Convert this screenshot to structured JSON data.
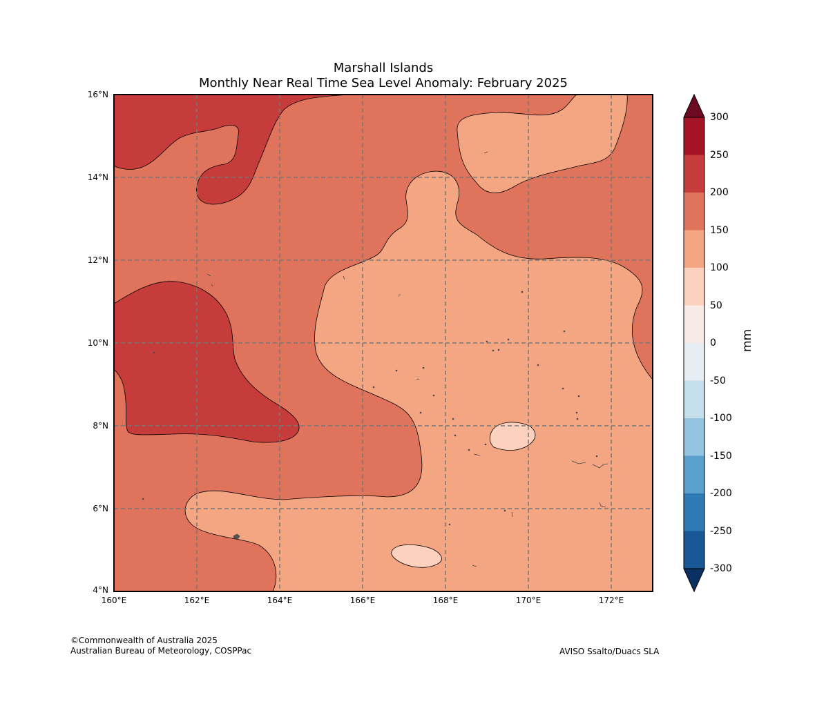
{
  "title_line1": "Marshall Islands",
  "title_line2": "Monthly Near Real Time Sea Level Anomaly: February 2025",
  "map": {
    "lon_range": [
      160,
      173
    ],
    "lat_range": [
      4,
      16
    ],
    "x_ticks": [
      "160°E",
      "162°E",
      "164°E",
      "166°E",
      "168°E",
      "170°E",
      "172°E"
    ],
    "y_ticks": [
      "4°N",
      "6°N",
      "8°N",
      "10°N",
      "12°N",
      "14°N",
      "16°N"
    ]
  },
  "colorbar": {
    "unit_label": "mm",
    "ticks": [
      "300",
      "250",
      "200",
      "150",
      "100",
      "50",
      "0",
      "-50",
      "-100",
      "-150",
      "-200",
      "-250",
      "-300"
    ],
    "colors": [
      "#a51326",
      "#c63c3b",
      "#e0735c",
      "#f4a683",
      "#fcd1be",
      "#f8eae4",
      "#e6eef3",
      "#c6dfed",
      "#94c4df",
      "#5aa0cc",
      "#2f79b5",
      "#195696"
    ],
    "over_color": "#6b0a20",
    "under_color": "#0a3062"
  },
  "footer": {
    "copyright": "©Commonwealth of Australia 2025",
    "agency": "Australian Bureau of Meteorology, COSPPac",
    "source": "AVISO Ssalto/Duacs SLA"
  }
}
